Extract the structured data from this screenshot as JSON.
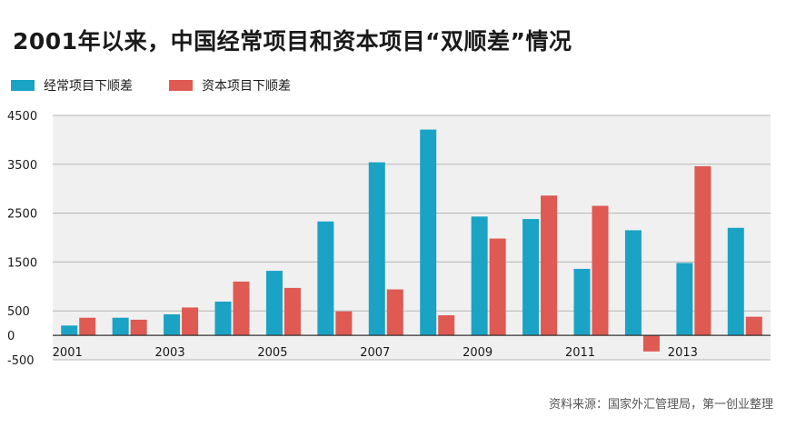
{
  "chart_data": {
    "type": "bar",
    "title": "2001年以来，中国经常项目和资本项目“双顺差”情况",
    "xlabel": "",
    "ylabel": "",
    "ylim": [
      -500,
      4500
    ],
    "yticks": [
      4500,
      3500,
      2500,
      1500,
      500,
      0,
      -500
    ],
    "categories": [
      "2001",
      "2002",
      "2003",
      "2004",
      "2005",
      "2006",
      "2007",
      "2008",
      "2009",
      "2010",
      "2011",
      "2012",
      "2013",
      "2014"
    ],
    "xtick_labels": [
      "2001",
      "",
      "2003",
      "",
      "2005",
      "",
      "2007",
      "",
      "2009",
      "",
      "2011",
      "",
      "2013",
      ""
    ],
    "series": [
      {
        "name": "经常项目下顺差",
        "color": "#1aa3c4",
        "values": [
          200,
          360,
          430,
          690,
          1320,
          2330,
          3540,
          4210,
          2430,
          2380,
          1360,
          2150,
          1480,
          2200
        ]
      },
      {
        "name": "资本项目下顺差",
        "color": "#de5a52",
        "values": [
          360,
          320,
          570,
          1100,
          970,
          490,
          940,
          410,
          1980,
          2860,
          2650,
          -330,
          3460,
          380
        ]
      }
    ],
    "source": "资料来源：国家外汇管理局，第一创业整理"
  }
}
